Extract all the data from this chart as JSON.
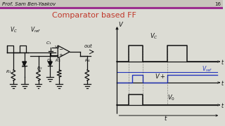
{
  "bg_color": "#dcdcd4",
  "header_text": "Prof. Sam Ben-Yaakov",
  "page_number": "16",
  "title": "Comparator based FF",
  "title_color": "#c0392b",
  "header_line_color": "#9b2d8e",
  "header_bg": "#c8c4bc",
  "title_fontsize": 8,
  "header_fontsize": 5.0,
  "text_color": "#111111",
  "lc": "#111111",
  "lw": 0.9,
  "waveform_bg": "#e8e8e0"
}
